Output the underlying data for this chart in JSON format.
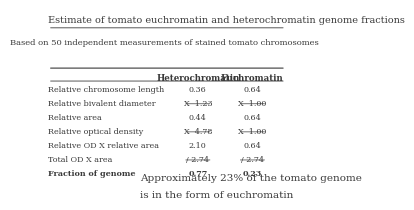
{
  "title": "Estimate of tomato euchromatin and heterochromatin genome fractions",
  "subtitle": "Based on 50 independent measurements of stained tomato chromosomes",
  "col_headers": [
    "Heterochromatin",
    "Euchromatin"
  ],
  "rows": [
    {
      "label": "Relative chromosome length",
      "hetero": "0.36",
      "eu": "0.64",
      "bold": false,
      "underline_hetero": false,
      "underline_eu": false
    },
    {
      "label": "Relative bivalent diameter",
      "hetero": "X  1.23",
      "eu": "X  1.00",
      "bold": false,
      "underline_hetero": true,
      "underline_eu": true
    },
    {
      "label": "Relative area",
      "hetero": "0.44",
      "eu": "0.64",
      "bold": false,
      "underline_hetero": false,
      "underline_eu": false
    },
    {
      "label": "Relative optical density",
      "hetero": "X  4.78",
      "eu": "X  1.00",
      "bold": false,
      "underline_hetero": true,
      "underline_eu": true
    },
    {
      "label": "Relative OD X relative area",
      "hetero": "2.10",
      "eu": "0.64",
      "bold": false,
      "underline_hetero": false,
      "underline_eu": false
    },
    {
      "label": "Total OD X area",
      "hetero": "/ 2.74",
      "eu": "/ 2.74",
      "bold": false,
      "underline_hetero": true,
      "underline_eu": true
    },
    {
      "label": "Fraction of genome",
      "hetero": "0.77",
      "eu": "0.23",
      "bold": true,
      "underline_hetero": false,
      "underline_eu": false
    }
  ],
  "footer_line1": "Approximately 23% of the tomato genome",
  "footer_line2": "is in the form of euchromatin",
  "bg_color": "#ffffff",
  "text_color": "#3a3a3a",
  "title_fontsize": 7.0,
  "subtitle_fontsize": 6.0,
  "header_fontsize": 6.2,
  "row_fontsize": 5.8,
  "footer_fontsize": 7.5
}
